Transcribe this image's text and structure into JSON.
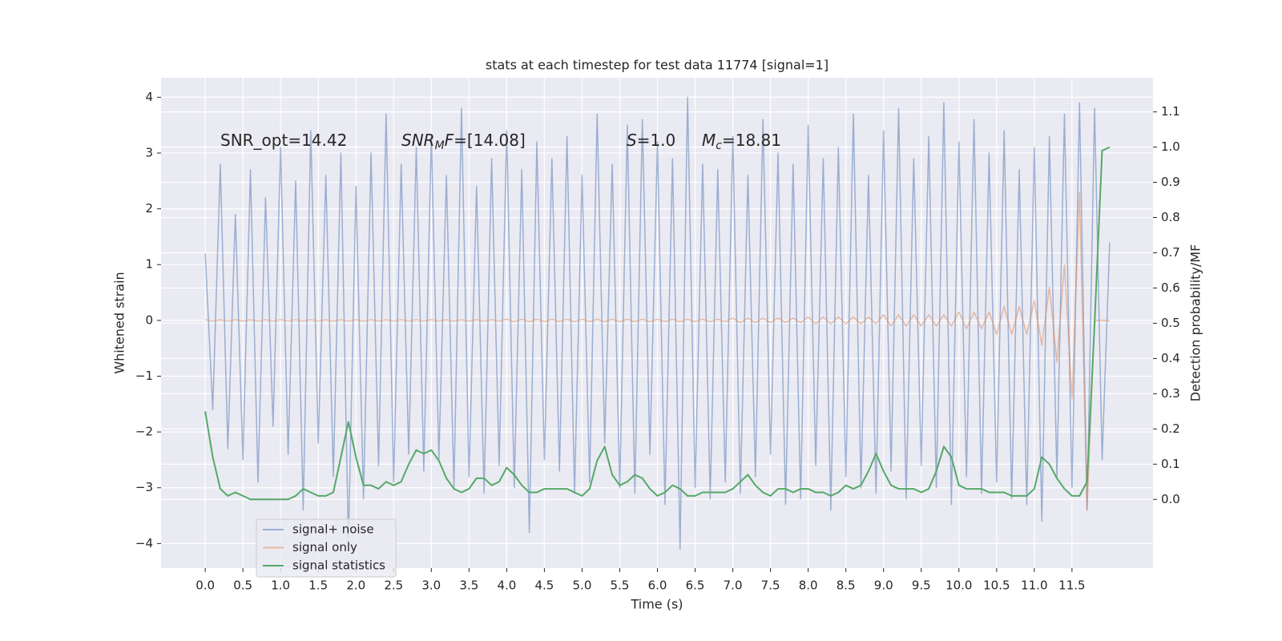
{
  "chart_data": {
    "type": "line",
    "title": "stats at each timestep for test data 11774 [signal=1]",
    "xlabel": "Time (s)",
    "ylabel": "Whitened strain",
    "y2label": "Detection probability/MF",
    "grid": true,
    "legend": "lower left",
    "xlim": [
      -0.586,
      12.575
    ],
    "ylim": [
      -4.44,
      4.35
    ],
    "y2lim": [
      -0.195,
      1.197
    ],
    "xticks": [
      {
        "value": 0,
        "label": "0.0"
      },
      {
        "value": 0.5,
        "label": "0.5"
      },
      {
        "value": 1,
        "label": "1.0"
      },
      {
        "value": 1.5,
        "label": "1.5"
      },
      {
        "value": 2,
        "label": "2.0"
      },
      {
        "value": 2.5,
        "label": "2.5"
      },
      {
        "value": 3,
        "label": "3.0"
      },
      {
        "value": 3.5,
        "label": "3.5"
      },
      {
        "value": 4,
        "label": "4.0"
      },
      {
        "value": 4.5,
        "label": "4.5"
      },
      {
        "value": 5,
        "label": "5.0"
      },
      {
        "value": 5.5,
        "label": "5.5"
      },
      {
        "value": 6,
        "label": "6.0"
      },
      {
        "value": 6.5,
        "label": "6.5"
      },
      {
        "value": 7,
        "label": "7.0"
      },
      {
        "value": 7.5,
        "label": "7.5"
      },
      {
        "value": 8,
        "label": "8.0"
      },
      {
        "value": 8.5,
        "label": "8.5"
      },
      {
        "value": 9,
        "label": "9.0"
      },
      {
        "value": 9.5,
        "label": "9.5"
      },
      {
        "value": 10,
        "label": "10.0"
      },
      {
        "value": 10.5,
        "label": "10.5"
      },
      {
        "value": 11,
        "label": "11.0"
      },
      {
        "value": 11.5,
        "label": "11.5"
      }
    ],
    "yticks": [
      {
        "value": -4,
        "label": "−4"
      },
      {
        "value": -3,
        "label": "−3"
      },
      {
        "value": -2,
        "label": "−2"
      },
      {
        "value": -1,
        "label": "−1"
      },
      0,
      1,
      2,
      3,
      4
    ],
    "y2ticks": [
      {
        "value": 0,
        "label": "0.0"
      },
      {
        "value": 0.1,
        "label": "0.1"
      },
      {
        "value": 0.2,
        "label": "0.2"
      },
      {
        "value": 0.3,
        "label": "0.3"
      },
      {
        "value": 0.4,
        "label": "0.4"
      },
      {
        "value": 0.5,
        "label": "0.5"
      },
      {
        "value": 0.6,
        "label": "0.6"
      },
      {
        "value": 0.7,
        "label": "0.7"
      },
      {
        "value": 0.8,
        "label": "0.8"
      },
      {
        "value": 0.9,
        "label": "0.9"
      },
      {
        "value": 1,
        "label": "1.0"
      },
      {
        "value": 1.1,
        "label": "1.1"
      }
    ],
    "annotations": [
      [
        {
          "t": "SNR_opt=14.42"
        }
      ],
      [
        {
          "t": "SNR",
          "i": true
        },
        {
          "t": "M",
          "i": true,
          "sub": true
        },
        {
          "t": "F",
          "i": true
        },
        {
          "t": "=[14.08]"
        }
      ],
      [
        {
          "t": "S",
          "i": true
        },
        {
          "t": "=1.0"
        }
      ],
      [
        {
          "t": "M",
          "i": true
        },
        {
          "t": "c",
          "i": true,
          "sub": true
        },
        {
          "t": "=18.81"
        }
      ]
    ],
    "x": [
      0.0,
      0.1,
      0.2,
      0.3,
      0.4,
      0.5,
      0.6,
      0.7,
      0.8,
      0.9,
      1.0,
      1.1,
      1.2,
      1.3,
      1.4,
      1.5,
      1.6,
      1.7,
      1.8,
      1.9,
      2.0,
      2.1,
      2.2,
      2.3,
      2.4,
      2.5,
      2.6,
      2.7,
      2.8,
      2.9,
      3.0,
      3.1,
      3.2,
      3.3,
      3.4,
      3.5,
      3.6,
      3.7,
      3.8,
      3.9,
      4.0,
      4.1,
      4.2,
      4.3,
      4.4,
      4.5,
      4.6,
      4.7,
      4.8,
      4.9,
      5.0,
      5.1,
      5.2,
      5.3,
      5.4,
      5.5,
      5.6,
      5.7,
      5.8,
      5.9,
      6.0,
      6.1,
      6.2,
      6.3,
      6.4,
      6.5,
      6.6,
      6.7,
      6.8,
      6.9,
      7.0,
      7.1,
      7.2,
      7.3,
      7.4,
      7.5,
      7.6,
      7.7,
      7.8,
      7.9,
      8.0,
      8.1,
      8.2,
      8.3,
      8.4,
      8.5,
      8.6,
      8.7,
      8.8,
      8.9,
      9.0,
      9.1,
      9.2,
      9.3,
      9.4,
      9.5,
      9.6,
      9.7,
      9.8,
      9.9,
      10.0,
      10.1,
      10.2,
      10.3,
      10.4,
      10.5,
      10.6,
      10.7,
      10.8,
      10.9,
      11.0,
      11.1,
      11.2,
      11.3,
      11.4,
      11.5,
      11.6,
      11.7,
      11.8,
      11.9,
      12.0
    ],
    "series": [
      {
        "name": "signal+ noise",
        "color": "#4c72b0",
        "alpha": 0.5,
        "axis": "y",
        "values": [
          1.2,
          -1.6,
          2.8,
          -2.3,
          1.9,
          -2.5,
          2.7,
          -2.9,
          2.2,
          -1.9,
          3.1,
          -2.4,
          2.5,
          -3.4,
          3.4,
          -2.2,
          2.6,
          -2.8,
          3.0,
          -4.0,
          2.4,
          -3.2,
          3.0,
          -2.6,
          3.7,
          -2.9,
          2.8,
          -2.4,
          3.1,
          -2.7,
          3.3,
          -2.5,
          2.6,
          -3.0,
          3.8,
          -2.8,
          2.4,
          -3.1,
          2.9,
          -2.6,
          3.4,
          -3.0,
          2.7,
          -3.8,
          3.2,
          -2.5,
          2.9,
          -2.7,
          3.3,
          -3.1,
          2.6,
          -2.9,
          3.7,
          -2.2,
          2.8,
          -3.0,
          3.5,
          -3.1,
          3.6,
          -2.4,
          3.2,
          -3.3,
          2.9,
          -4.1,
          4.0,
          -3.0,
          2.8,
          -3.2,
          2.7,
          -2.9,
          3.3,
          -3.1,
          2.6,
          -2.8,
          3.6,
          -2.4,
          3.0,
          -3.3,
          2.8,
          -3.2,
          3.5,
          -2.6,
          2.9,
          -3.4,
          3.1,
          -2.8,
          3.7,
          -3.0,
          2.6,
          -3.1,
          3.4,
          -2.7,
          3.8,
          -3.2,
          2.9,
          -2.6,
          3.3,
          -3.0,
          3.9,
          -3.3,
          3.2,
          -2.8,
          3.6,
          -3.1,
          3.0,
          -2.9,
          3.4,
          -3.2,
          2.7,
          -3.3,
          3.1,
          -3.6,
          3.3,
          -2.8,
          3.7,
          -3.0,
          3.9,
          -3.4,
          3.8,
          -2.5,
          1.4
        ]
      },
      {
        "name": "signal only",
        "color": "#dd8452",
        "alpha": 0.5,
        "axis": "y",
        "values": [
          0.01,
          -0.01,
          0.01,
          -0.01,
          0.01,
          -0.01,
          0.01,
          -0.01,
          0.01,
          -0.01,
          0.01,
          -0.01,
          0.01,
          -0.01,
          0.01,
          -0.01,
          0.01,
          -0.01,
          0.01,
          -0.01,
          0.01,
          -0.01,
          0.01,
          -0.01,
          0.01,
          -0.01,
          0.01,
          -0.01,
          0.01,
          -0.01,
          0.01,
          -0.01,
          0.01,
          -0.01,
          0.01,
          -0.01,
          0.01,
          -0.01,
          0.01,
          -0.01,
          0.02,
          -0.02,
          0.02,
          -0.02,
          0.02,
          -0.02,
          0.02,
          -0.02,
          0.02,
          -0.02,
          0.02,
          -0.02,
          0.02,
          -0.02,
          0.02,
          -0.02,
          0.02,
          -0.02,
          0.02,
          -0.02,
          0.02,
          -0.02,
          0.02,
          -0.02,
          0.02,
          -0.02,
          0.02,
          -0.02,
          0.02,
          -0.02,
          0.04,
          -0.04,
          0.04,
          -0.04,
          0.04,
          -0.04,
          0.04,
          -0.04,
          0.04,
          -0.04,
          0.06,
          -0.06,
          0.06,
          -0.06,
          0.06,
          -0.06,
          0.06,
          -0.06,
          0.06,
          -0.06,
          0.1,
          -0.1,
          0.1,
          -0.1,
          0.1,
          -0.1,
          0.1,
          -0.1,
          0.1,
          -0.1,
          0.15,
          -0.15,
          0.15,
          -0.15,
          0.15,
          -0.25,
          0.25,
          -0.25,
          0.25,
          -0.25,
          0.35,
          -0.45,
          0.6,
          -0.75,
          1.0,
          -1.4,
          2.3,
          -3.4,
          0,
          0,
          0
        ]
      },
      {
        "name": "signal statistics",
        "color": "#55a868",
        "alpha": 1,
        "axis": "y2",
        "values": [
          0.25,
          0.12,
          0.03,
          0.01,
          0.02,
          0.01,
          0.0,
          0.0,
          0.0,
          0.0,
          0.0,
          0.0,
          0.01,
          0.03,
          0.02,
          0.01,
          0.01,
          0.02,
          0.12,
          0.22,
          0.12,
          0.04,
          0.04,
          0.03,
          0.05,
          0.04,
          0.05,
          0.1,
          0.14,
          0.13,
          0.14,
          0.11,
          0.06,
          0.03,
          0.02,
          0.03,
          0.06,
          0.06,
          0.04,
          0.05,
          0.09,
          0.07,
          0.04,
          0.02,
          0.02,
          0.03,
          0.03,
          0.03,
          0.03,
          0.02,
          0.01,
          0.03,
          0.11,
          0.15,
          0.07,
          0.04,
          0.05,
          0.07,
          0.06,
          0.03,
          0.01,
          0.02,
          0.04,
          0.03,
          0.01,
          0.01,
          0.02,
          0.02,
          0.02,
          0.02,
          0.03,
          0.05,
          0.07,
          0.04,
          0.02,
          0.01,
          0.03,
          0.03,
          0.02,
          0.03,
          0.03,
          0.02,
          0.02,
          0.01,
          0.02,
          0.04,
          0.03,
          0.04,
          0.08,
          0.13,
          0.08,
          0.04,
          0.03,
          0.03,
          0.03,
          0.02,
          0.03,
          0.08,
          0.15,
          0.12,
          0.04,
          0.03,
          0.03,
          0.03,
          0.02,
          0.02,
          0.02,
          0.01,
          0.01,
          0.01,
          0.03,
          0.12,
          0.1,
          0.06,
          0.03,
          0.01,
          0.01,
          0.05,
          0.5,
          0.99,
          1.0
        ]
      }
    ]
  }
}
